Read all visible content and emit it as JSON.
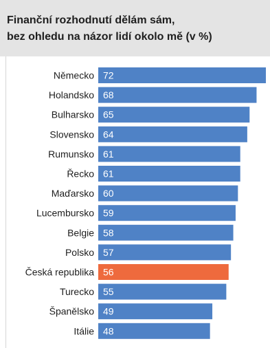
{
  "title_lines": [
    "Finanční rozhodnutí dělám sám,",
    "bez ohledu na názor lidí okolo mě (v %)"
  ],
  "colors": {
    "bar_default": "#4f82c6",
    "bar_highlight": "#ee6a3d",
    "header_bg": "#e4e4e4",
    "label_text": "#1e1e1e",
    "value_text": "#ffffff"
  },
  "chart_data": {
    "type": "bar",
    "orientation": "horizontal",
    "title": "Finanční rozhodnutí dělám sám, bez ohledu na názor lidí okolo mě (v %)",
    "categories": [
      "Německo",
      "Holandsko",
      "Bulharsko",
      "Slovensko",
      "Rumunsko",
      "Řecko",
      "Maďarsko",
      "Lucembursko",
      "Belgie",
      "Polsko",
      "Česká republika",
      "Turecko",
      "Španělsko",
      "Itálie"
    ],
    "values": [
      72,
      68,
      65,
      64,
      61,
      61,
      60,
      59,
      58,
      57,
      56,
      55,
      49,
      48
    ],
    "highlight": "Česká republika",
    "xlim": [
      0,
      72
    ],
    "grid": false,
    "legend": "none"
  }
}
